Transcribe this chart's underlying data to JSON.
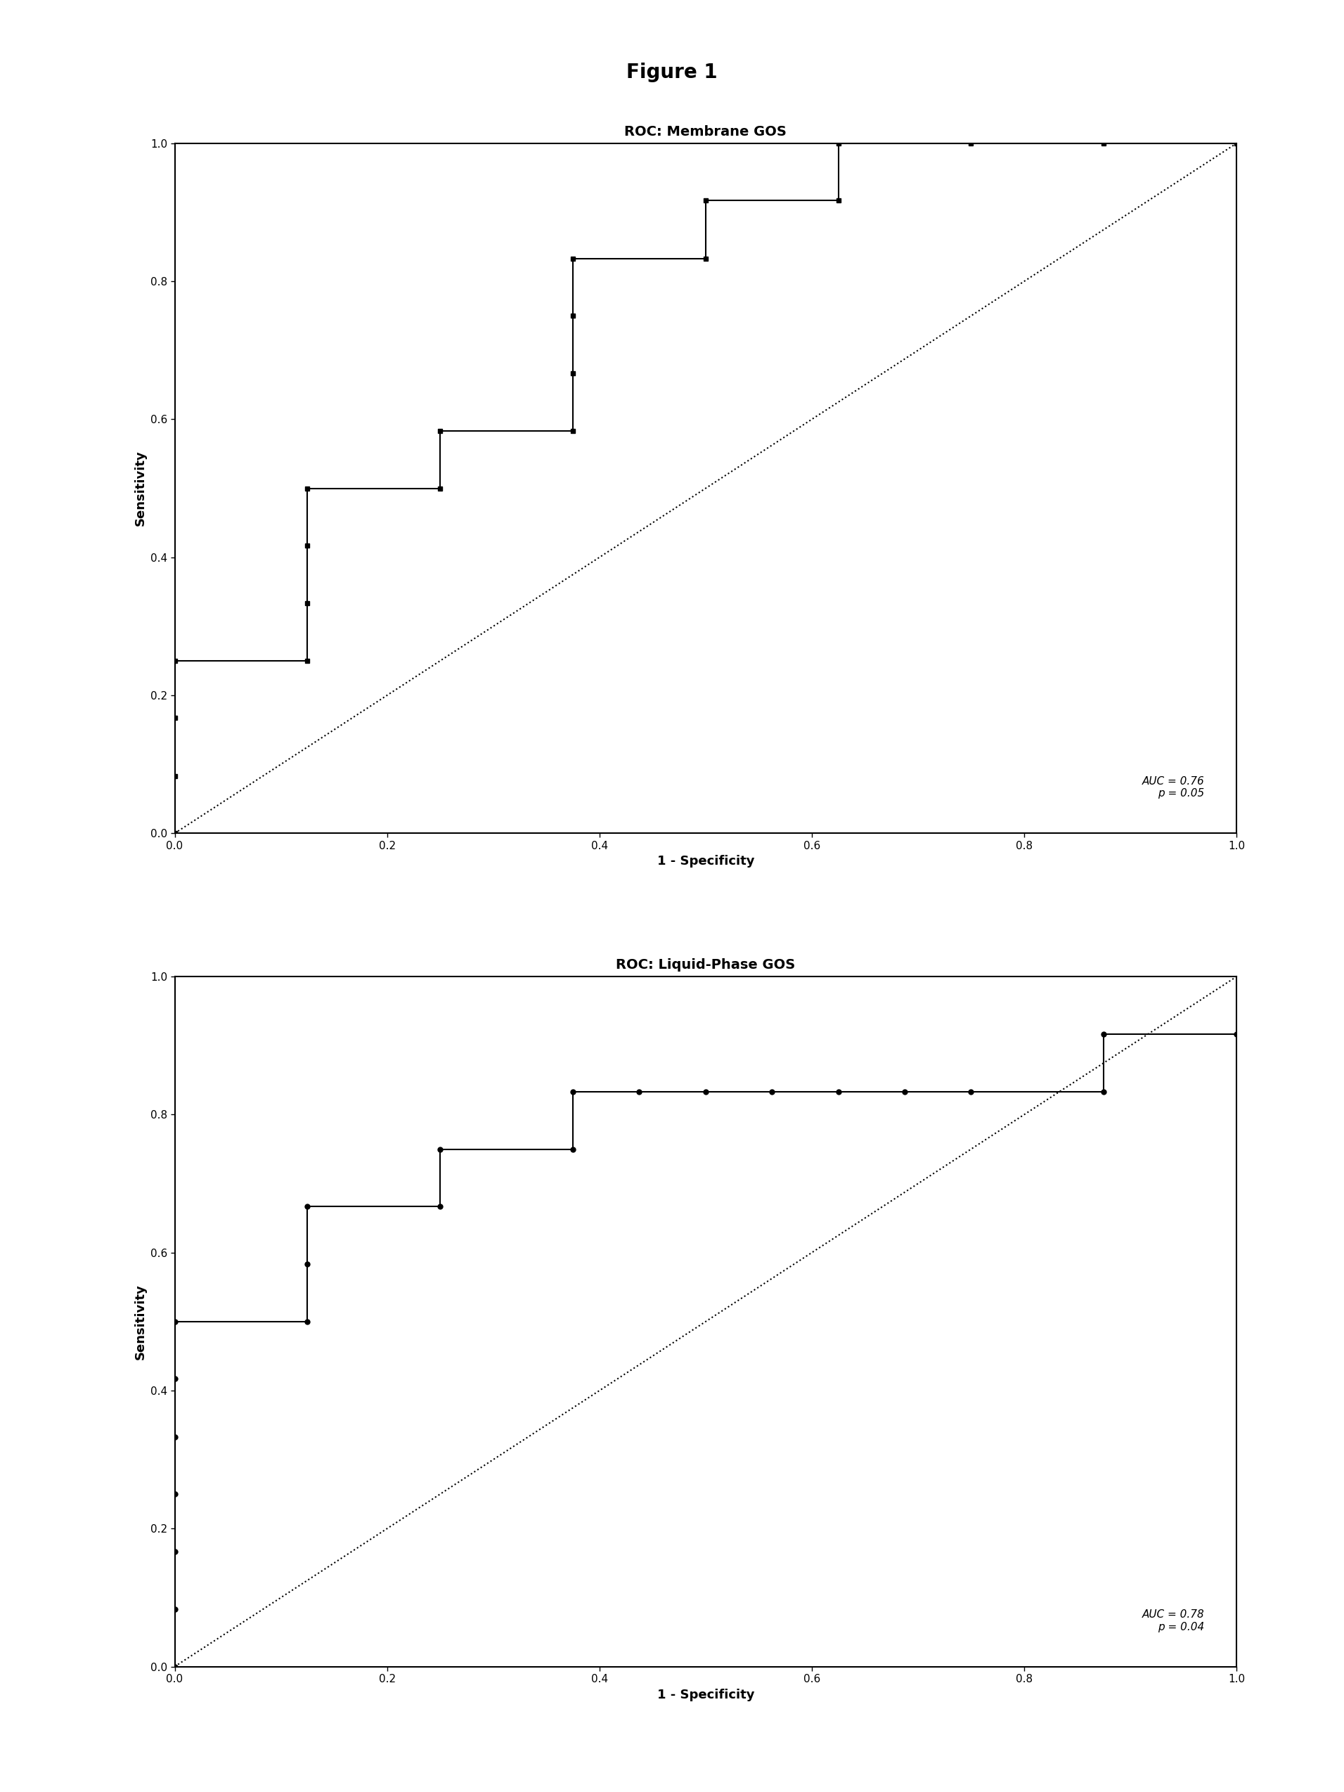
{
  "figure_title": "Figure 1",
  "figure_title_fontsize": 20,
  "figure_title_fontweight": "bold",
  "plot1_title": "ROC: Membrane GOS",
  "plot1_title_fontsize": 14,
  "plot1_title_fontweight": "bold",
  "plot1_xlabel": "1 - Specificity",
  "plot1_ylabel": "Sensitivity",
  "plot1_annotation": "AUC = 0.76\np = 0.05",
  "plot2_title": "ROC: Liquid-Phase GOS",
  "plot2_title_fontsize": 14,
  "plot2_title_fontweight": "bold",
  "plot2_xlabel": "1 - Specificity",
  "plot2_ylabel": "Sensitivity",
  "plot2_annotation": "AUC = 0.78\np = 0.04",
  "roc1_pts": [
    [
      0.0,
      0.0
    ],
    [
      0.0,
      0.083
    ],
    [
      0.0,
      0.167
    ],
    [
      0.0,
      0.25
    ],
    [
      0.125,
      0.25
    ],
    [
      0.125,
      0.333
    ],
    [
      0.125,
      0.417
    ],
    [
      0.125,
      0.5
    ],
    [
      0.25,
      0.5
    ],
    [
      0.25,
      0.583
    ],
    [
      0.375,
      0.583
    ],
    [
      0.375,
      0.667
    ],
    [
      0.375,
      0.75
    ],
    [
      0.375,
      0.833
    ],
    [
      0.5,
      0.833
    ],
    [
      0.5,
      0.917
    ],
    [
      0.625,
      0.917
    ],
    [
      0.625,
      1.0
    ],
    [
      0.75,
      1.0
    ],
    [
      0.875,
      1.0
    ],
    [
      1.0,
      1.0
    ]
  ],
  "roc2_pts": [
    [
      0.0,
      0.0
    ],
    [
      0.0,
      0.083
    ],
    [
      0.0,
      0.167
    ],
    [
      0.0,
      0.25
    ],
    [
      0.0,
      0.333
    ],
    [
      0.0,
      0.417
    ],
    [
      0.0,
      0.5
    ],
    [
      0.125,
      0.5
    ],
    [
      0.125,
      0.583
    ],
    [
      0.125,
      0.667
    ],
    [
      0.25,
      0.667
    ],
    [
      0.25,
      0.75
    ],
    [
      0.375,
      0.75
    ],
    [
      0.375,
      0.833
    ],
    [
      0.4375,
      0.833
    ],
    [
      0.5,
      0.833
    ],
    [
      0.5625,
      0.833
    ],
    [
      0.625,
      0.833
    ],
    [
      0.6875,
      0.833
    ],
    [
      0.75,
      0.833
    ],
    [
      0.875,
      0.833
    ],
    [
      0.875,
      0.917
    ],
    [
      1.0,
      0.917
    ]
  ],
  "marker_color": "#000000",
  "line_color": "#000000",
  "diag_color": "#000000",
  "background_color": "#ffffff",
  "xlim": [
    0.0,
    1.0
  ],
  "ylim": [
    0.0,
    1.0
  ],
  "xticks": [
    0.0,
    0.2,
    0.4,
    0.6,
    0.8,
    1.0
  ],
  "yticks": [
    0.0,
    0.2,
    0.4,
    0.6,
    0.8,
    1.0
  ],
  "tick_fontsize": 11,
  "axis_label_fontsize": 13,
  "annotation_fontsize": 11
}
